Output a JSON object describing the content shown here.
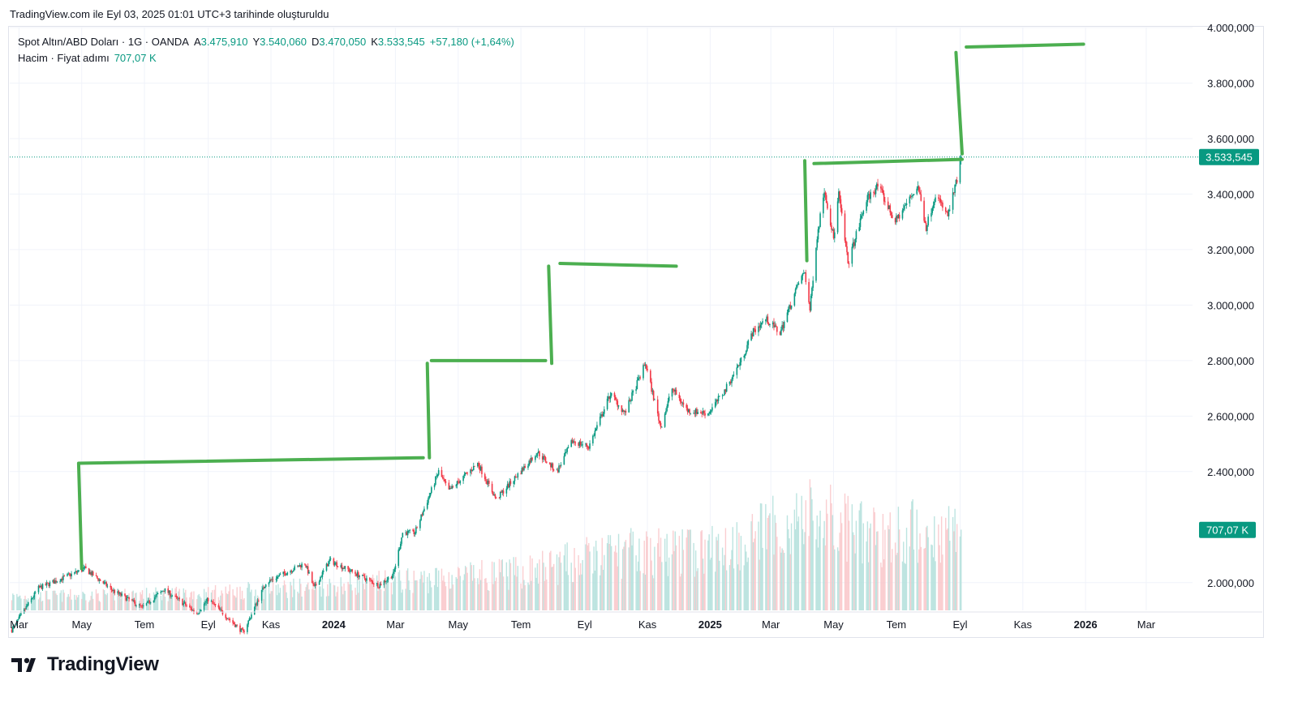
{
  "caption": "TradingView.com ile Eyl 03, 2025 01:01 UTC+3 tarihinde oluşturuldu",
  "legend": {
    "symbol": "Spot Altın/ABD Doları · 1G · OANDA",
    "open_label": "A",
    "open": "3.475,910",
    "high_label": "Y",
    "high": "3.540,060",
    "low_label": "D",
    "low": "3.470,050",
    "close_label": "K",
    "close": "3.533,545",
    "change": "+57,180 (+1,64%)",
    "volume_label": "Hacim · Fiyat adımı",
    "volume": "707,07 K"
  },
  "brand": {
    "name": "TradingView"
  },
  "colors": {
    "up": "#089981",
    "down": "#f23645",
    "drawing": "#4caf50",
    "badge": "#089981"
  },
  "chart_data": {
    "type": "candlestick",
    "symbol": "Spot Altın/ABD Doları",
    "interval": "1G",
    "source": "OANDA",
    "y_axis": {
      "side": "right",
      "ylim": [
        1900000,
        4000000
      ],
      "ticks": [
        2000000,
        2400000,
        2600000,
        2800000,
        3000000,
        3200000,
        3400000,
        3600000,
        3800000,
        4000000
      ],
      "tick_labels": [
        "2.000,000",
        "2.400,000",
        "2.600,000",
        "2.800,000",
        "3.000,000",
        "3.200,000",
        "3.400,000",
        "3.600,000",
        "3.800,000",
        "4.000,000"
      ]
    },
    "x_axis": {
      "labels": [
        {
          "label": "Mar",
          "date": "2023-03-01",
          "bold": false
        },
        {
          "label": "May",
          "date": "2023-05-01",
          "bold": false
        },
        {
          "label": "Tem",
          "date": "2023-07-01",
          "bold": false
        },
        {
          "label": "Eyl",
          "date": "2023-09-01",
          "bold": false
        },
        {
          "label": "Kas",
          "date": "2023-11-01",
          "bold": false
        },
        {
          "label": "2024",
          "date": "2024-01-01",
          "bold": true
        },
        {
          "label": "Mar",
          "date": "2024-03-01",
          "bold": false
        },
        {
          "label": "May",
          "date": "2024-05-01",
          "bold": false
        },
        {
          "label": "Tem",
          "date": "2024-07-01",
          "bold": false
        },
        {
          "label": "Eyl",
          "date": "2024-09-01",
          "bold": false
        },
        {
          "label": "Kas",
          "date": "2024-11-01",
          "bold": false
        },
        {
          "label": "2025",
          "date": "2025-01-01",
          "bold": true
        },
        {
          "label": "Mar",
          "date": "2025-03-01",
          "bold": false
        },
        {
          "label": "May",
          "date": "2025-05-01",
          "bold": false
        },
        {
          "label": "Tem",
          "date": "2025-07-01",
          "bold": false
        },
        {
          "label": "Eyl",
          "date": "2025-09-01",
          "bold": false
        },
        {
          "label": "Kas",
          "date": "2025-11-01",
          "bold": false
        },
        {
          "label": "2026",
          "date": "2026-01-01",
          "bold": true
        },
        {
          "label": "Mar",
          "date": "2026-03-01",
          "bold": false
        }
      ],
      "range": [
        "2023-02-20",
        "2026-04-15"
      ]
    },
    "price_path": [
      {
        "date": "2023-02-22",
        "value": 1830000
      },
      {
        "date": "2023-03-20",
        "value": 1980000
      },
      {
        "date": "2023-05-04",
        "value": 2050000
      },
      {
        "date": "2023-06-01",
        "value": 1970000
      },
      {
        "date": "2023-06-29",
        "value": 1910000
      },
      {
        "date": "2023-07-20",
        "value": 1975000
      },
      {
        "date": "2023-08-21",
        "value": 1890000
      },
      {
        "date": "2023-09-01",
        "value": 1940000
      },
      {
        "date": "2023-10-05",
        "value": 1820000
      },
      {
        "date": "2023-10-27",
        "value": 2000000
      },
      {
        "date": "2023-12-04",
        "value": 2070000
      },
      {
        "date": "2023-12-13",
        "value": 1980000
      },
      {
        "date": "2023-12-28",
        "value": 2080000
      },
      {
        "date": "2024-02-14",
        "value": 1990000
      },
      {
        "date": "2024-02-28",
        "value": 2030000
      },
      {
        "date": "2024-03-08",
        "value": 2180000
      },
      {
        "date": "2024-03-20",
        "value": 2180000
      },
      {
        "date": "2024-04-12",
        "value": 2400000
      },
      {
        "date": "2024-04-22",
        "value": 2330000
      },
      {
        "date": "2024-05-20",
        "value": 2430000
      },
      {
        "date": "2024-06-07",
        "value": 2300000
      },
      {
        "date": "2024-07-17",
        "value": 2470000
      },
      {
        "date": "2024-08-05",
        "value": 2400000
      },
      {
        "date": "2024-08-20",
        "value": 2510000
      },
      {
        "date": "2024-09-05",
        "value": 2490000
      },
      {
        "date": "2024-09-26",
        "value": 2680000
      },
      {
        "date": "2024-10-10",
        "value": 2610000
      },
      {
        "date": "2024-10-30",
        "value": 2790000
      },
      {
        "date": "2024-11-14",
        "value": 2560000
      },
      {
        "date": "2024-11-25",
        "value": 2700000
      },
      {
        "date": "2024-12-10",
        "value": 2620000
      },
      {
        "date": "2024-12-30",
        "value": 2610000
      },
      {
        "date": "2025-01-15",
        "value": 2690000
      },
      {
        "date": "2025-01-31",
        "value": 2800000
      },
      {
        "date": "2025-02-11",
        "value": 2900000
      },
      {
        "date": "2025-02-24",
        "value": 2950000
      },
      {
        "date": "2025-03-10",
        "value": 2900000
      },
      {
        "date": "2025-03-28",
        "value": 3080000
      },
      {
        "date": "2025-04-03",
        "value": 3120000
      },
      {
        "date": "2025-04-08",
        "value": 2980000
      },
      {
        "date": "2025-04-14",
        "value": 3220000
      },
      {
        "date": "2025-04-22",
        "value": 3420000
      },
      {
        "date": "2025-05-01",
        "value": 3240000
      },
      {
        "date": "2025-05-06",
        "value": 3400000
      },
      {
        "date": "2025-05-15",
        "value": 3150000
      },
      {
        "date": "2025-06-02",
        "value": 3380000
      },
      {
        "date": "2025-06-13",
        "value": 3430000
      },
      {
        "date": "2025-06-30",
        "value": 3300000
      },
      {
        "date": "2025-07-22",
        "value": 3430000
      },
      {
        "date": "2025-07-30",
        "value": 3280000
      },
      {
        "date": "2025-08-08",
        "value": 3400000
      },
      {
        "date": "2025-08-20",
        "value": 3320000
      },
      {
        "date": "2025-08-29",
        "value": 3450000
      },
      {
        "date": "2025-09-02",
        "value": 3533545
      }
    ],
    "volume": {
      "last": 707070,
      "peak": 1420000,
      "path": [
        {
          "date": "2023-02-22",
          "value": 120000
        },
        {
          "date": "2023-09-01",
          "value": 150000
        },
        {
          "date": "2024-03-01",
          "value": 250000
        },
        {
          "date": "2024-07-01",
          "value": 330000
        },
        {
          "date": "2024-10-01",
          "value": 500000
        },
        {
          "date": "2025-01-01",
          "value": 520000
        },
        {
          "date": "2025-04-10",
          "value": 820000
        },
        {
          "date": "2025-06-01",
          "value": 650000
        },
        {
          "date": "2025-09-02",
          "value": 700000
        }
      ]
    },
    "last_price_line": 3533545,
    "last_price_label": "3.533,545",
    "volume_badge": "707,07 K",
    "volume_badge_price_level": 2190000,
    "drawings": [
      {
        "type": "polyline",
        "color": "#4caf50",
        "points": [
          {
            "date": "2023-05-01",
            "value": 2050000
          },
          {
            "date": "2023-04-28",
            "value": 2430000
          },
          {
            "date": "2024-03-28",
            "value": 2450000
          }
        ]
      },
      {
        "type": "polyline",
        "color": "#4caf50",
        "points": [
          {
            "date": "2024-04-03",
            "value": 2450000
          },
          {
            "date": "2024-04-01",
            "value": 2790000
          }
        ]
      },
      {
        "type": "polyline",
        "color": "#4caf50",
        "points": [
          {
            "date": "2024-04-05",
            "value": 2800000
          },
          {
            "date": "2024-07-25",
            "value": 2800000
          }
        ]
      },
      {
        "type": "polyline",
        "color": "#4caf50",
        "points": [
          {
            "date": "2024-07-31",
            "value": 2790000
          },
          {
            "date": "2024-07-28",
            "value": 3140000
          }
        ]
      },
      {
        "type": "polyline",
        "color": "#4caf50",
        "points": [
          {
            "date": "2024-08-08",
            "value": 3150000
          },
          {
            "date": "2024-11-29",
            "value": 3140000
          }
        ]
      },
      {
        "type": "polyline",
        "color": "#4caf50",
        "points": [
          {
            "date": "2025-04-05",
            "value": 3160000
          },
          {
            "date": "2025-04-03",
            "value": 3520000
          }
        ]
      },
      {
        "type": "polyline",
        "color": "#4caf50",
        "points": [
          {
            "date": "2025-04-12",
            "value": 3510000
          },
          {
            "date": "2025-09-03",
            "value": 3525000
          }
        ]
      },
      {
        "type": "polyline",
        "color": "#4caf50",
        "points": [
          {
            "date": "2025-09-03",
            "value": 3545000
          },
          {
            "date": "2025-08-28",
            "value": 3910000
          }
        ]
      },
      {
        "type": "polyline",
        "color": "#4caf50",
        "points": [
          {
            "date": "2025-09-07",
            "value": 3930000
          },
          {
            "date": "2025-12-30",
            "value": 3940000
          }
        ]
      }
    ]
  }
}
